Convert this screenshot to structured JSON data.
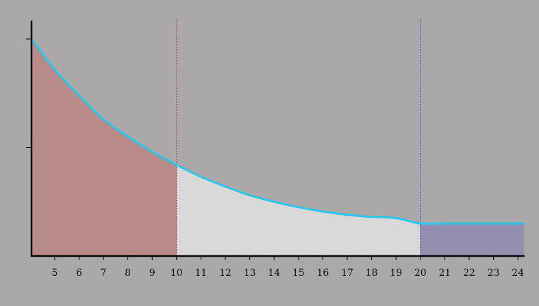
{
  "chart_data": {
    "type": "area",
    "title": "",
    "xlabel": "",
    "ylabel": "",
    "xlim": [
      4.05,
      24.25
    ],
    "ylim": [
      0,
      1.1
    ],
    "x_ticks": [
      5,
      6,
      7,
      8,
      9,
      10,
      11,
      12,
      13,
      14,
      15,
      16,
      17,
      18,
      19,
      20,
      21,
      22,
      23,
      24
    ],
    "x_tick_labels": [
      "5",
      "6",
      "7",
      "8",
      "9",
      "10",
      "11",
      "12",
      "13",
      "14",
      "15",
      "16",
      "17",
      "18",
      "19",
      "20",
      "21",
      "22",
      "23",
      "24"
    ],
    "y_ticks": [
      0.5,
      1.0
    ],
    "y_tick_labels": [
      "",
      ""
    ],
    "series": [
      {
        "x": [
          4.05,
          5,
          6,
          7,
          8,
          9,
          10,
          11,
          12,
          13,
          14,
          15,
          16,
          17,
          18,
          19,
          20,
          21,
          22,
          23,
          24,
          24.25
        ],
        "y": [
          1.0,
          0.86,
          0.74,
          0.63,
          0.55,
          0.48,
          0.42,
          0.365,
          0.32,
          0.28,
          0.25,
          0.225,
          0.205,
          0.19,
          0.18,
          0.175,
          0.15,
          0.15,
          0.15,
          0.15,
          0.15,
          0.15
        ]
      }
    ],
    "regions": [
      {
        "from": 4.05,
        "to": 10,
        "color": "#b98a8a"
      },
      {
        "from": 10,
        "to": 20,
        "color": "#d9d8d8"
      },
      {
        "from": 20,
        "to": 24.25,
        "color": "#948ead"
      }
    ],
    "markers": [
      {
        "x": 10,
        "color": "#c0392b"
      },
      {
        "x": 20,
        "color": "#3f37c9"
      }
    ],
    "colors": {
      "background": "#aaa8a8",
      "curve": "#29c6ee",
      "axis": "#000000"
    },
    "grid": false
  }
}
